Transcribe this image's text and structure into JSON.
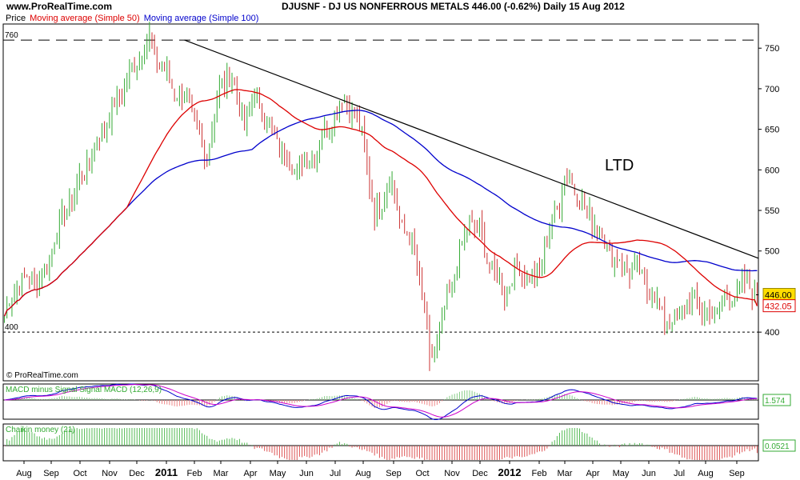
{
  "header": {
    "site": "www.ProRealTime.com",
    "title": "DJUSNF - DJ US NONFERROUS METALS     446.00 (-0.62%)     Daily   15 Aug 2012"
  },
  "legend": {
    "price_label": "Price",
    "ma50_label": "Moving average (Simple 50)",
    "ma100_label": "Moving average (Simple 100)"
  },
  "colors": {
    "up": "#33aa33",
    "down": "#cc3333",
    "ma50": "#dd0000",
    "ma100": "#0000cc",
    "price_tag": "#ffdd00"
  },
  "chart_data": [
    {
      "type": "ohlc",
      "name": "price",
      "y_ticks": [
        400,
        450,
        500,
        550,
        600,
        650,
        700,
        750
      ],
      "ylim": [
        340,
        765
      ],
      "x_tick_labels": [
        "Aug",
        "Sep",
        "Oct",
        "Nov",
        "Dec",
        "2011",
        "Feb",
        "Mar",
        "Apr",
        "May",
        "Jun",
        "Jul",
        "Aug",
        "Sep",
        "Oct",
        "Nov",
        "Dec",
        "2012",
        "Feb",
        "Mar",
        "Apr",
        "May",
        "Jun",
        "Jul",
        "Aug",
        "Sep"
      ],
      "price_keypoints": [
        [
          0,
          420
        ],
        [
          5,
          460
        ],
        [
          16,
          470
        ],
        [
          20,
          520
        ],
        [
          32,
          600
        ],
        [
          44,
          680
        ],
        [
          54,
          740
        ],
        [
          58,
          760
        ],
        [
          62,
          730
        ],
        [
          68,
          700
        ],
        [
          74,
          680
        ],
        [
          80,
          610
        ],
        [
          86,
          700
        ],
        [
          90,
          720
        ],
        [
          96,
          660
        ],
        [
          100,
          690
        ],
        [
          108,
          640
        ],
        [
          116,
          600
        ],
        [
          124,
          620
        ],
        [
          130,
          660
        ],
        [
          136,
          690
        ],
        [
          140,
          670
        ],
        [
          144,
          630
        ],
        [
          148,
          540
        ],
        [
          154,
          590
        ],
        [
          158,
          540
        ],
        [
          164,
          500
        ],
        [
          168,
          430
        ],
        [
          170,
          370
        ],
        [
          174,
          400
        ],
        [
          180,
          470
        ],
        [
          186,
          540
        ],
        [
          190,
          520
        ],
        [
          196,
          470
        ],
        [
          200,
          450
        ],
        [
          206,
          480
        ],
        [
          212,
          460
        ],
        [
          218,
          520
        ],
        [
          224,
          590
        ],
        [
          228,
          580
        ],
        [
          232,
          550
        ],
        [
          236,
          540
        ],
        [
          242,
          500
        ],
        [
          248,
          480
        ],
        [
          254,
          470
        ],
        [
          260,
          440
        ],
        [
          266,
          410
        ],
        [
          270,
          420
        ],
        [
          276,
          440
        ],
        [
          280,
          420
        ],
        [
          286,
          430
        ],
        [
          292,
          450
        ],
        [
          298,
          460
        ],
        [
          301,
          446
        ]
      ],
      "horizontal_lines": [
        {
          "label": "760",
          "value": 760,
          "style": "dashed"
        },
        {
          "label": "400",
          "value": 400,
          "style": "dashed"
        }
      ],
      "trendline": {
        "label": "LTD",
        "points": [
          [
            72,
            760
          ],
          [
            316,
            491
          ]
        ]
      },
      "price_tag": "446.00",
      "ma_tag": "432.05",
      "y_tick_labels": [
        "750",
        "700",
        "650",
        "600",
        "550",
        "500",
        "400"
      ]
    },
    {
      "type": "line",
      "name": "macd",
      "title": "MACD minus Signal Signal MACD (12,26,9)",
      "value_label": "1.574"
    },
    {
      "type": "bar",
      "name": "chaikin",
      "title": "Chaikin money (21)",
      "value_label": "0.0521"
    }
  ],
  "watermark": "© ProRealTime.com"
}
